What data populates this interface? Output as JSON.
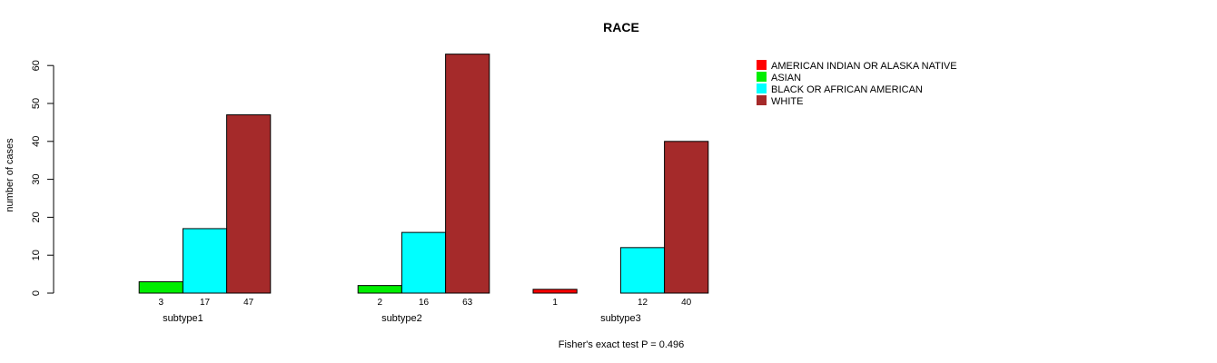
{
  "chart_data": {
    "type": "bar",
    "title": "RACE",
    "ylabel": "number of cases",
    "xlabel": "Fisher's exact test P = 0.496",
    "ylim": [
      0,
      60
    ],
    "yticks": [
      0,
      10,
      20,
      30,
      40,
      50,
      60
    ],
    "categories": [
      "subtype1",
      "subtype2",
      "subtype3"
    ],
    "series": [
      {
        "name": "AMERICAN INDIAN OR ALASKA NATIVE",
        "color": "#ff0000",
        "values": [
          0,
          0,
          1
        ]
      },
      {
        "name": "ASIAN",
        "color": "#00ee00",
        "values": [
          3,
          2,
          0
        ]
      },
      {
        "name": "BLACK OR AFRICAN AMERICAN",
        "color": "#00ffff",
        "values": [
          17,
          16,
          12
        ]
      },
      {
        "name": "WHITE",
        "color": "#a52a2a",
        "values": [
          47,
          63,
          40
        ]
      }
    ],
    "legend_position": "top-right",
    "grid": false
  }
}
